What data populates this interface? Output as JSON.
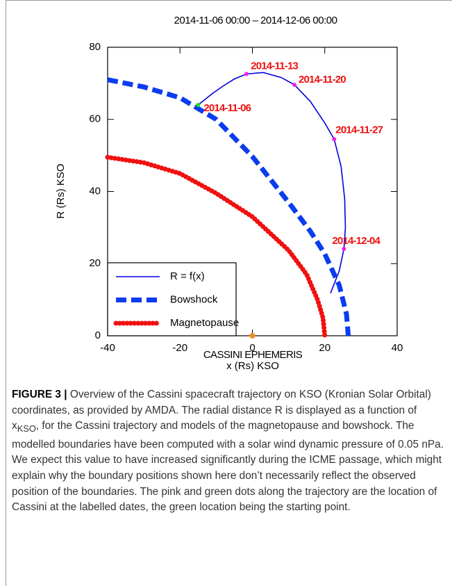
{
  "chart_data": {
    "type": "line",
    "title": "2014-11-06 00:00 – 2014-12-06 00:00",
    "xlabel": [
      "CASSINI EPHEMERIS",
      "x (Rs) KSO"
    ],
    "ylabel": "R (Rs) KSO",
    "xlim": [
      -40,
      40
    ],
    "ylim": [
      0,
      80
    ],
    "xticks": [
      -40,
      -20,
      0,
      20,
      40
    ],
    "yticks": [
      0,
      20,
      40,
      60,
      80
    ],
    "legend": "lower left",
    "series": [
      {
        "name": "R = f(x)",
        "color": "#0000dd",
        "linestyle": "solid",
        "x": [
          -15,
          -11,
          -8,
          -5,
          -1.6,
          3,
          8,
          11.6,
          16,
          20,
          22.6,
          24.5,
          25.5,
          25.7,
          25.3,
          24,
          21.6
        ],
        "values": [
          64,
          67.2,
          69.3,
          71.2,
          72.6,
          73,
          71.6,
          69.6,
          65,
          59,
          54.5,
          47,
          38,
          30,
          24.1,
          18,
          11.8
        ]
      },
      {
        "name": "Bowshock",
        "color": "#0a3cf0",
        "linestyle": "dashed",
        "x": [
          -40,
          -30,
          -20,
          -10,
          0,
          10,
          16,
          20,
          24,
          26,
          26.5
        ],
        "values": [
          71,
          69,
          66,
          60,
          49.7,
          37,
          29,
          22.7,
          14,
          6,
          0
        ]
      },
      {
        "name": "Magnetopause",
        "color": "#f01010",
        "linestyle": "dotted",
        "x": [
          -40,
          -30,
          -20,
          -10,
          0,
          10,
          15,
          18,
          19.5,
          20
        ],
        "values": [
          49.5,
          48,
          45,
          39.5,
          33,
          23.7,
          17,
          10,
          5,
          0
        ]
      }
    ],
    "annotations": [
      {
        "text": "2014-11-06",
        "x": -15,
        "y": 64,
        "color": "#22dd22"
      },
      {
        "text": "2014-11-13",
        "x": -1.6,
        "y": 72.6,
        "color": "#ee22ee"
      },
      {
        "text": "2014-11-20",
        "x": 11.6,
        "y": 69.6,
        "color": "#ee22ee"
      },
      {
        "text": "2014-11-27",
        "x": 22.6,
        "y": 54.5,
        "color": "#ee22ee"
      },
      {
        "text": "2014-12-04",
        "x": 25.3,
        "y": 24.1,
        "color": "#ee22ee"
      }
    ]
  },
  "caption": {
    "label": "FIGURE 3 |",
    "text_before": "Overview of the Cassini spacecraft trajectory on KSO (Kronian Solar Orbital) coordinates, as provided by AMDA. The radial distance R is displayed as a function of x",
    "subscript": "KSO",
    "text_after": ", for the Cassini trajectory and models of the magnetopause and bowshock. The modelled boundaries have been computed with a solar wind dynamic pressure of 0.05 nPa. We expect this value to have increased significantly during the ICME passage, which might explain why the boundary positions shown here don’t necessarily reflect the observed position of the boundaries. The pink and green dots along the trajectory are the location of Cassini at the labelled dates, the green location being the starting point."
  }
}
